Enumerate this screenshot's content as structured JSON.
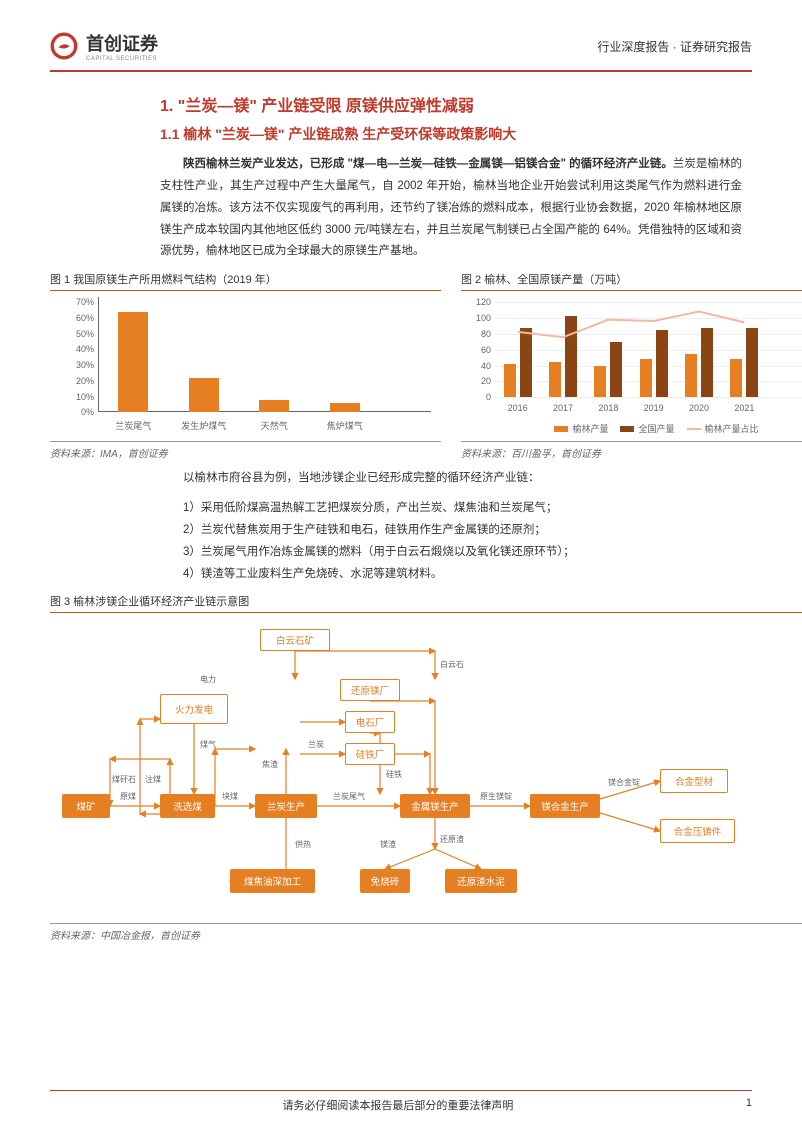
{
  "header": {
    "logo_text": "首创证券",
    "logo_sub": "CAPITAL SECURITIES",
    "right": "行业深度报告 · 证券研究报告"
  },
  "section1": {
    "h1": "1. \"兰炭—镁\" 产业链受限 原镁供应弹性减弱",
    "h2": "1.1 榆林 \"兰炭—镁\" 产业链成熟 生产受环保等政策影响大",
    "p1_bold": "陕西榆林兰炭产业发达，已形成 \"煤—电—兰炭—硅铁—金属镁—铝镁合金\" 的循环经济产业链。",
    "p1_rest": "兰炭是榆林的支柱性产业，其生产过程中产生大量尾气，自 2002 年开始，榆林当地企业开始尝试利用这类尾气作为燃料进行金属镁的冶炼。该方法不仅实现废气的再利用，还节约了镁冶炼的燃料成本，根据行业协会数据，2020 年榆林地区原镁生产成本较国内其他地区低约 3000 元/吨镁左右，并且兰炭尾气制镁已占全国产能的 64%。凭借独特的区域和资源优势，榆林地区已成为全球最大的原镁生产基地。"
  },
  "fig1": {
    "title": "图 1 我国原镁生产所用燃料气结构（2019 年）",
    "source": "资料来源：IMA，首创证券",
    "categories": [
      "兰炭尾气",
      "发生炉煤气",
      "天然气",
      "焦炉煤气"
    ],
    "values": [
      64,
      22,
      8,
      6
    ],
    "ymax": 70,
    "ytick_step": 10,
    "bar_color": "#e67e22",
    "axis_color": "#666666"
  },
  "fig2": {
    "title": "图 2 榆林、全国原镁产量（万吨）",
    "source": "资料来源：百川盈孚，首创证券",
    "years": [
      "2016",
      "2017",
      "2018",
      "2019",
      "2020",
      "2021"
    ],
    "yulin": [
      42,
      45,
      40,
      48,
      55,
      48
    ],
    "national": [
      87,
      102,
      70,
      85,
      88,
      87
    ],
    "ratio": [
      48,
      44,
      57,
      56,
      63,
      55
    ],
    "y1max": 120,
    "y1tick": 20,
    "y2max": 70,
    "y2tick": 10,
    "color_yulin": "#e67e22",
    "color_national": "#8b4513",
    "color_ratio": "#f5b7a0",
    "legend": [
      "榆林产量",
      "全国产量",
      "榆林产量占比"
    ]
  },
  "list": {
    "intro": "以榆林市府谷县为例，当地涉镁企业已经形成完整的循环经济产业链：",
    "items": [
      "1）采用低阶煤高温热解工艺把煤炭分质，产出兰炭、煤焦油和兰炭尾气；",
      "2）兰炭代替焦炭用于生产硅铁和电石，硅铁用作生产金属镁的还原剂；",
      "3）兰炭尾气用作冶炼金属镁的燃料（用于白云石煅烧以及氧化镁还原环节）；",
      "4）镁渣等工业废料生产免烧砖、水泥等建筑材料。"
    ]
  },
  "fig3": {
    "title": "图 3 榆林涉镁企业循环经济产业链示意图",
    "source": "资料来源：中国冶金报，首创证券",
    "nodes": {
      "baiyunshi": "白云石矿",
      "huoli": "火力发电",
      "huanyuan": "还原镁厂",
      "dianshi": "电石厂",
      "guitie": "硅铁厂",
      "meikuang": "煤矿",
      "xixuan": "洗选煤",
      "lantan": "兰炭生产",
      "jinshu": "金属镁生产",
      "meihejin": "镁合金生产",
      "hejinxing": "合金型材",
      "hejinya": "合金压铸件",
      "meijiao": "煤焦油深加工",
      "mianshao": "免烧砖",
      "huanyuanzha": "还原渣水泥"
    },
    "edge_labels": {
      "yuanmei": "原煤",
      "kuaimei": "块煤",
      "lantanweiqi": "兰炭尾气",
      "yuansheng": "原生镁锭",
      "meihejinding": "镁合金锭",
      "dianli": "电力",
      "meiqi": "煤气",
      "meigangshi": "煤矸石",
      "zhumei": "注煤",
      "baiyunshi_lbl": "白云石",
      "huanyuanzha_lbl": "还原渣",
      "meizha": "镁渣",
      "jiaozha": "焦渣",
      "lantan_lbl": "兰炭",
      "guitie_lbl": "硅铁",
      "gongre": "供热"
    },
    "fill_color": "#e67e22",
    "outline_color": "#e67e22",
    "line_color": "#e67e22"
  },
  "footer": {
    "text": "请务必仔细阅读本报告最后部分的重要法律声明",
    "page": "1"
  }
}
